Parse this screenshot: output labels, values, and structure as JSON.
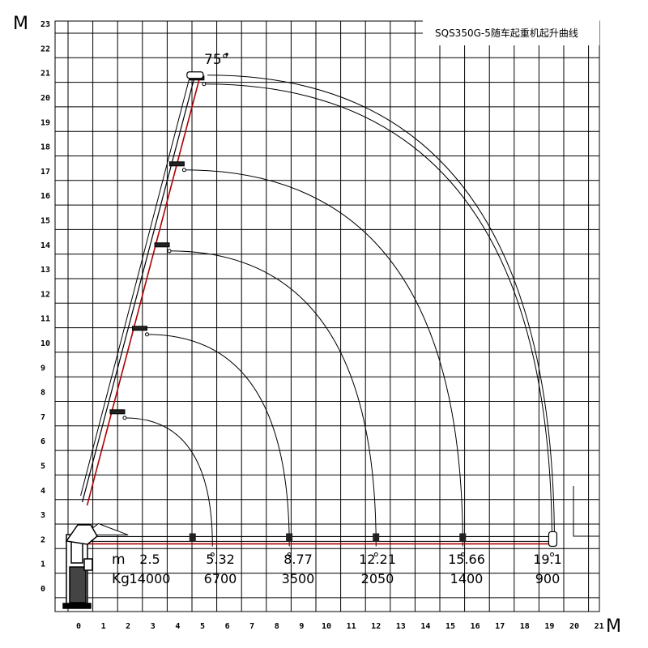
{
  "title": "SQS350G-5随车起重机起升曲线",
  "axis": {
    "y_unit": "M",
    "x_unit": "M",
    "y_ticks": [
      "0",
      "1",
      "2",
      "3",
      "4",
      "5",
      "6",
      "7",
      "8",
      "9",
      "10",
      "11",
      "12",
      "13",
      "14",
      "15",
      "16",
      "17",
      "18",
      "19",
      "20",
      "21",
      "22",
      "23"
    ],
    "x_ticks": [
      "0",
      "1",
      "2",
      "3",
      "4",
      "5",
      "6",
      "7",
      "8",
      "9",
      "10",
      "11",
      "12",
      "13",
      "14",
      "15",
      "16",
      "17",
      "18",
      "19",
      "20",
      "21"
    ]
  },
  "boom_angle_label": "75°",
  "table": {
    "radius_label": "m",
    "load_label": "Kg",
    "radius_values": [
      "2.5",
      "5.32",
      "8.77",
      "12.21",
      "15.66",
      "19.1"
    ],
    "load_values": [
      "14000",
      "6700",
      "3500",
      "2050",
      "1400",
      "900"
    ]
  },
  "chart_data": {
    "type": "diagram",
    "xlim": [
      0,
      21
    ],
    "ylim": [
      0,
      23
    ],
    "grid": true,
    "boom_angle_deg": 75,
    "sections": [
      {
        "radius_m": 2.5,
        "load_kg": 14000,
        "tip_raised": [
          1.6,
          7.2
        ],
        "arc_end": [
          5.5,
          1.7
        ]
      },
      {
        "radius_m": 5.32,
        "load_kg": 6700,
        "tip_raised": [
          2.5,
          10.6
        ],
        "arc_end": [
          8.6,
          1.7
        ]
      },
      {
        "radius_m": 8.77,
        "load_kg": 3500,
        "tip_raised": [
          3.4,
          14.0
        ],
        "arc_end": [
          12.1,
          1.7
        ]
      },
      {
        "radius_m": 12.21,
        "load_kg": 2050,
        "tip_raised": [
          4.0,
          17.3
        ],
        "arc_end": [
          15.6,
          1.7
        ]
      },
      {
        "radius_m": 15.66,
        "load_kg": 1400,
        "tip_raised": [
          4.8,
          20.8
        ],
        "arc_end": [
          19.2,
          1.7
        ]
      },
      {
        "radius_m": 19.1,
        "load_kg": 900
      }
    ]
  }
}
